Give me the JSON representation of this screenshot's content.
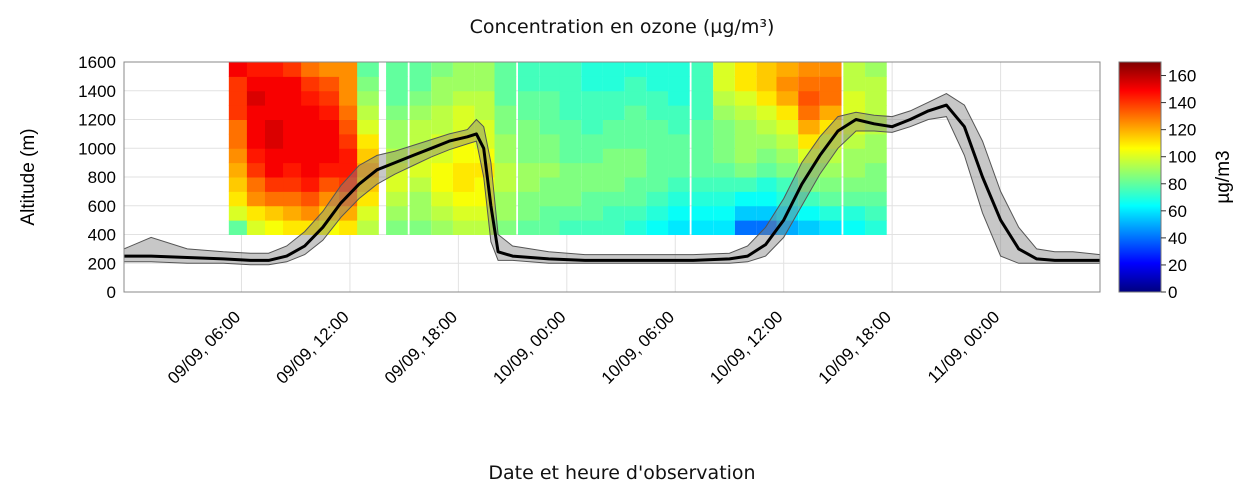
{
  "chart_data": {
    "type": "heatmap",
    "title": "Concentration en ozone (µg/m³)",
    "xlabel": "Date et heure d'observation",
    "ylabel": "Altitude (m)",
    "colorbar_label": "µg/m3",
    "x_start": "09/09, 00:00",
    "xlim_hours": [
      -0.5,
      53.5
    ],
    "ylim": [
      0,
      1600
    ],
    "yticks": [
      0,
      200,
      400,
      600,
      800,
      1000,
      1200,
      1400,
      1600
    ],
    "xticks": [
      {
        "hour": 6,
        "label": "09/09, 06:00"
      },
      {
        "hour": 12,
        "label": "09/09, 12:00"
      },
      {
        "hour": 18,
        "label": "09/09, 18:00"
      },
      {
        "hour": 24,
        "label": "10/09, 00:00"
      },
      {
        "hour": 30,
        "label": "10/09, 06:00"
      },
      {
        "hour": 36,
        "label": "10/09, 12:00"
      },
      {
        "hour": 42,
        "label": "10/09, 18:00"
      },
      {
        "hour": 48,
        "label": "11/09, 00:00"
      }
    ],
    "colorbar": {
      "min": 0,
      "max": 170,
      "ticks": [
        0,
        20,
        40,
        60,
        80,
        100,
        120,
        140,
        160
      ]
    },
    "grid": true,
    "colormap": "jet",
    "heatmap_rows_altitude": [
      400,
      500,
      600,
      700,
      800,
      900,
      1000,
      1100,
      1200,
      1300,
      1400,
      1500
    ],
    "heatmap_columns": [
      {
        "hour": 5.3,
        "values": [
          80,
          100,
          110,
          115,
          120,
          125,
          130,
          130,
          140,
          140,
          140,
          150
        ]
      },
      {
        "hour": 6.3,
        "values": [
          100,
          110,
          125,
          130,
          140,
          145,
          150,
          150,
          150,
          155,
          150,
          145
        ]
      },
      {
        "hour": 7.3,
        "values": [
          105,
          115,
          130,
          140,
          150,
          150,
          155,
          155,
          150,
          150,
          150,
          145
        ]
      },
      {
        "hour": 8.3,
        "values": [
          110,
          120,
          130,
          140,
          145,
          150,
          150,
          150,
          150,
          150,
          150,
          140
        ]
      },
      {
        "hour": 9.3,
        "values": [
          110,
          125,
          135,
          145,
          150,
          150,
          150,
          150,
          150,
          145,
          140,
          130
        ]
      },
      {
        "hour": 10.3,
        "values": [
          105,
          115,
          125,
          135,
          145,
          150,
          150,
          150,
          145,
          140,
          135,
          125
        ]
      },
      {
        "hour": 11.4,
        "values": [
          110,
          120,
          130,
          140,
          145,
          145,
          140,
          135,
          130,
          125,
          125,
          125
        ]
      },
      {
        "hour": 12.4,
        "values": [
          95,
          100,
          110,
          115,
          120,
          115,
          110,
          100,
          95,
          90,
          85,
          80
        ]
      },
      {
        "hour": 14.0,
        "values": [
          85,
          90,
          95,
          100,
          100,
          95,
          90,
          90,
          85,
          80,
          80,
          80
        ]
      },
      {
        "hour": 15.3,
        "values": [
          85,
          90,
          90,
          95,
          100,
          100,
          95,
          95,
          90,
          85,
          80,
          80
        ]
      },
      {
        "hour": 16.5,
        "values": [
          90,
          95,
          100,
          105,
          105,
          100,
          100,
          95,
          95,
          90,
          90,
          85
        ]
      },
      {
        "hour": 17.7,
        "values": [
          95,
          100,
          105,
          110,
          110,
          105,
          105,
          100,
          100,
          95,
          90,
          90
        ]
      },
      {
        "hour": 18.9,
        "values": [
          95,
          100,
          105,
          105,
          110,
          105,
          100,
          100,
          95,
          95,
          90,
          90
        ]
      },
      {
        "hour": 20.0,
        "values": [
          85,
          90,
          90,
          95,
          95,
          90,
          90,
          85,
          85,
          80,
          80,
          80
        ]
      },
      {
        "hour": 21.3,
        "values": [
          80,
          85,
          85,
          90,
          90,
          85,
          85,
          85,
          80,
          80,
          75,
          75
        ]
      },
      {
        "hour": 22.5,
        "values": [
          80,
          80,
          85,
          85,
          90,
          85,
          85,
          80,
          80,
          80,
          75,
          75
        ]
      },
      {
        "hour": 23.6,
        "values": [
          75,
          80,
          85,
          85,
          85,
          80,
          80,
          80,
          75,
          75,
          75,
          75
        ]
      },
      {
        "hour": 24.8,
        "values": [
          75,
          80,
          80,
          85,
          85,
          80,
          80,
          75,
          75,
          75,
          70,
          70
        ]
      },
      {
        "hour": 26.0,
        "values": [
          75,
          75,
          80,
          85,
          85,
          85,
          80,
          80,
          75,
          75,
          70,
          70
        ]
      },
      {
        "hour": 27.2,
        "values": [
          70,
          75,
          80,
          80,
          85,
          85,
          80,
          80,
          80,
          75,
          75,
          70
        ]
      },
      {
        "hour": 28.4,
        "values": [
          65,
          70,
          75,
          80,
          80,
          80,
          80,
          80,
          75,
          75,
          70,
          70
        ]
      },
      {
        "hour": 29.6,
        "values": [
          60,
          65,
          70,
          75,
          80,
          80,
          80,
          75,
          75,
          70,
          70,
          70
        ]
      },
      {
        "hour": 30.9,
        "values": [
          60,
          65,
          70,
          75,
          80,
          80,
          80,
          80,
          75,
          75,
          75,
          75
        ]
      },
      {
        "hour": 32.1,
        "values": [
          60,
          65,
          70,
          75,
          80,
          85,
          85,
          85,
          90,
          95,
          100,
          100
        ]
      },
      {
        "hour": 33.3,
        "values": [
          40,
          55,
          65,
          75,
          85,
          90,
          90,
          90,
          95,
          100,
          110,
          110
        ]
      },
      {
        "hour": 34.5,
        "values": [
          40,
          55,
          65,
          70,
          80,
          85,
          90,
          95,
          100,
          110,
          115,
          115
        ]
      },
      {
        "hour": 35.6,
        "values": [
          50,
          60,
          70,
          75,
          85,
          90,
          95,
          100,
          110,
          120,
          125,
          120
        ]
      },
      {
        "hour": 36.8,
        "values": [
          55,
          65,
          75,
          85,
          90,
          100,
          110,
          120,
          130,
          135,
          130,
          125
        ]
      },
      {
        "hour": 38.0,
        "values": [
          60,
          70,
          80,
          85,
          90,
          95,
          100,
          110,
          120,
          130,
          130,
          125
        ]
      },
      {
        "hour": 39.3,
        "values": [
          65,
          70,
          80,
          85,
          90,
          90,
          95,
          100,
          100,
          100,
          95,
          95
        ]
      },
      {
        "hour": 40.5,
        "values": [
          70,
          75,
          80,
          85,
          85,
          90,
          90,
          95,
          95,
          95,
          95,
          90
        ]
      }
    ],
    "series": [
      {
        "x": [
          -0.5,
          1,
          3,
          5,
          6.5,
          7.5,
          8.5,
          9.5,
          10.5,
          11.5,
          12.5,
          13.5,
          14.5,
          15.5,
          16.5,
          17.5,
          18.5,
          19,
          19.4,
          19.8,
          20.2,
          21,
          23,
          25,
          27,
          29,
          31,
          33,
          34,
          35,
          36,
          37,
          38,
          39,
          40,
          41,
          42,
          43,
          44,
          45,
          46,
          47,
          48,
          49,
          50,
          51,
          52,
          53.5
        ],
        "y": [
          250,
          250,
          240,
          230,
          220,
          220,
          250,
          320,
          450,
          620,
          750,
          850,
          900,
          950,
          1000,
          1050,
          1080,
          1100,
          1000,
          600,
          280,
          250,
          230,
          220,
          220,
          220,
          220,
          230,
          250,
          330,
          500,
          750,
          950,
          1120,
          1200,
          1170,
          1150,
          1200,
          1260,
          1300,
          1150,
          800,
          500,
          300,
          230,
          220,
          220,
          220
        ],
        "band_lower": [
          210,
          210,
          200,
          200,
          190,
          190,
          210,
          260,
          360,
          520,
          650,
          750,
          820,
          880,
          940,
          990,
          1030,
          1050,
          800,
          350,
          220,
          220,
          200,
          200,
          200,
          200,
          200,
          200,
          210,
          250,
          380,
          600,
          820,
          1000,
          1120,
          1120,
          1110,
          1150,
          1200,
          1220,
          950,
          550,
          250,
          200,
          200,
          200,
          200,
          200
        ],
        "band_upper": [
          300,
          380,
          300,
          280,
          270,
          270,
          320,
          420,
          560,
          740,
          880,
          950,
          980,
          1020,
          1060,
          1100,
          1130,
          1200,
          1150,
          900,
          400,
          320,
          280,
          260,
          260,
          260,
          260,
          270,
          320,
          450,
          650,
          900,
          1080,
          1220,
          1250,
          1230,
          1220,
          1260,
          1320,
          1380,
          1300,
          1050,
          700,
          450,
          300,
          280,
          280,
          260
        ]
      }
    ]
  }
}
